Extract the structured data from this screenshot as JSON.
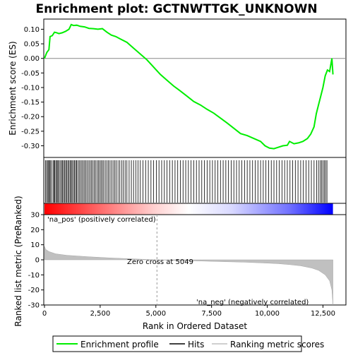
{
  "chart_data": {
    "type": "line",
    "title": "Enrichment plot: GCTNWTTGK_UNKNOWN",
    "top_panel": {
      "ylabel": "Enrichment score (ES)",
      "ylim": [
        -0.34,
        0.135
      ],
      "yticks": [
        0.1,
        0.05,
        0.0,
        -0.05,
        -0.1,
        -0.15,
        -0.2,
        -0.25,
        -0.3
      ],
      "ytick_labels": [
        "0.10",
        "0.05",
        "0.00",
        "-0.05",
        "-0.10",
        "-0.15",
        "-0.20",
        "-0.25",
        "-0.30"
      ],
      "series": [
        {
          "name": "Enrichment profile",
          "color": "#00ee00",
          "x": [
            0,
            100,
            200,
            250,
            350,
            450,
            550,
            650,
            800,
            950,
            1100,
            1200,
            1300,
            1450,
            1600,
            1800,
            2000,
            2200,
            2400,
            2600,
            2800,
            3000,
            3200,
            3400,
            3700,
            4000,
            4300,
            4600,
            4900,
            5200,
            5500,
            5800,
            6100,
            6400,
            6700,
            7000,
            7300,
            7600,
            7900,
            8200,
            8500,
            8800,
            9100,
            9400,
            9700,
            9900,
            10100,
            10300,
            10500,
            10700,
            10900,
            11000,
            11200,
            11400,
            11600,
            11800,
            11950,
            12100,
            12200,
            12300,
            12400,
            12500,
            12600,
            12700,
            12800,
            12900,
            12950
          ],
          "y": [
            0.0,
            0.02,
            0.03,
            0.075,
            0.078,
            0.09,
            0.088,
            0.085,
            0.088,
            0.093,
            0.1,
            0.116,
            0.113,
            0.114,
            0.11,
            0.108,
            0.103,
            0.102,
            0.1,
            0.102,
            0.09,
            0.08,
            0.075,
            0.067,
            0.055,
            0.035,
            0.015,
            -0.005,
            -0.03,
            -0.055,
            -0.075,
            -0.095,
            -0.112,
            -0.13,
            -0.148,
            -0.16,
            -0.175,
            -0.188,
            -0.205,
            -0.222,
            -0.24,
            -0.258,
            -0.265,
            -0.275,
            -0.285,
            -0.3,
            -0.308,
            -0.31,
            -0.305,
            -0.3,
            -0.298,
            -0.285,
            -0.293,
            -0.29,
            -0.285,
            -0.275,
            -0.26,
            -0.235,
            -0.19,
            -0.16,
            -0.13,
            -0.1,
            -0.06,
            -0.04,
            -0.045,
            0.0,
            -0.055
          ]
        }
      ]
    },
    "hits_panel": {
      "legend_name": "Hits",
      "hit_positions": [
        40,
        90,
        150,
        180,
        230,
        250,
        300,
        380,
        420,
        460,
        510,
        560,
        600,
        640,
        700,
        760,
        800,
        850,
        900,
        950,
        1000,
        1050,
        1100,
        1150,
        1200,
        1240,
        1300,
        1350,
        1400,
        1440,
        1500,
        1560,
        1620,
        1680,
        1740,
        1800,
        1860,
        1920,
        1990,
        2050,
        2110,
        2170,
        2230,
        2290,
        2360,
        2420,
        2480,
        2540,
        2600,
        2660,
        2730,
        2800,
        2870,
        2940,
        3010,
        3080,
        3150,
        3220,
        3300,
        3380,
        3460,
        3540,
        3620,
        3700,
        3800,
        3900,
        4000,
        4100,
        4200,
        4300,
        4420,
        4540,
        4660,
        4780,
        4900,
        5020,
        5140,
        5260,
        5380,
        5500,
        5620,
        5740,
        5860,
        5980,
        6100,
        6220,
        6340,
        6460,
        6580,
        6700,
        6820,
        6940,
        7060,
        7180,
        7300,
        7420,
        7540,
        7660,
        7780,
        7900,
        8020,
        8140,
        8260,
        8380,
        8500,
        8620,
        8740,
        8860,
        8980,
        9100,
        9220,
        9340,
        9460,
        9580,
        9700,
        9820,
        9940,
        10060,
        10180,
        10300,
        10420,
        10540,
        10660,
        10780,
        10900,
        11020,
        11140,
        11260,
        11380,
        11500,
        11620,
        11740,
        11860,
        11980,
        12100,
        12220,
        12300,
        12380,
        12440,
        12500,
        12560,
        12620,
        12680
      ]
    },
    "metric_panel": {
      "ylabel": "Ranked list metric (PreRanked)",
      "xlabel": "Rank in Ordered Dataset",
      "ylim": [
        -30,
        30
      ],
      "yticks": [
        30,
        20,
        10,
        0,
        -10,
        -20,
        -30
      ],
      "ytick_labels": [
        "30",
        "20",
        "10",
        "0",
        "-10",
        "-20",
        "-30"
      ],
      "xticks": [
        0,
        2500,
        5000,
        7500,
        10000,
        12500
      ],
      "xtick_labels": [
        "0",
        "2,500",
        "5,000",
        "7,500",
        "10,000",
        "12,500"
      ],
      "xlim": [
        0,
        13500
      ],
      "series": [
        {
          "name": "Ranking metric scores",
          "color": "#c0c0c0",
          "x": [
            0,
            50,
            200,
            500,
            1000,
            2000,
            3000,
            4000,
            5049,
            6000,
            7000,
            8000,
            9000,
            10000,
            10500,
            11000,
            11500,
            12000,
            12300,
            12600,
            12800,
            12900,
            12950
          ],
          "y": [
            9,
            7,
            5.5,
            4,
            3,
            2,
            1.2,
            0.6,
            0,
            -0.4,
            -0.8,
            -1.2,
            -1.6,
            -2.2,
            -2.6,
            -3.2,
            -4,
            -5.5,
            -7,
            -10,
            -14,
            -20,
            -30
          ]
        }
      ],
      "annotations": {
        "pos_label": "'na_pos' (positively correlated)",
        "neg_label": "'na_neg' (negatively correlated)",
        "zero_cross": "Zero cross at 5049",
        "zero_cross_rank": 5049
      }
    },
    "legend": {
      "items": [
        {
          "label": "Enrichment profile",
          "color": "#00ee00"
        },
        {
          "label": "Hits",
          "color": "#000000"
        },
        {
          "label": "Ranking metric scores",
          "color": "#c0c0c0"
        }
      ],
      "placement": "bottom"
    },
    "colors": {
      "pos_text": "#cc0000",
      "neg_text": "#0000cc",
      "frame": "#000000"
    }
  }
}
